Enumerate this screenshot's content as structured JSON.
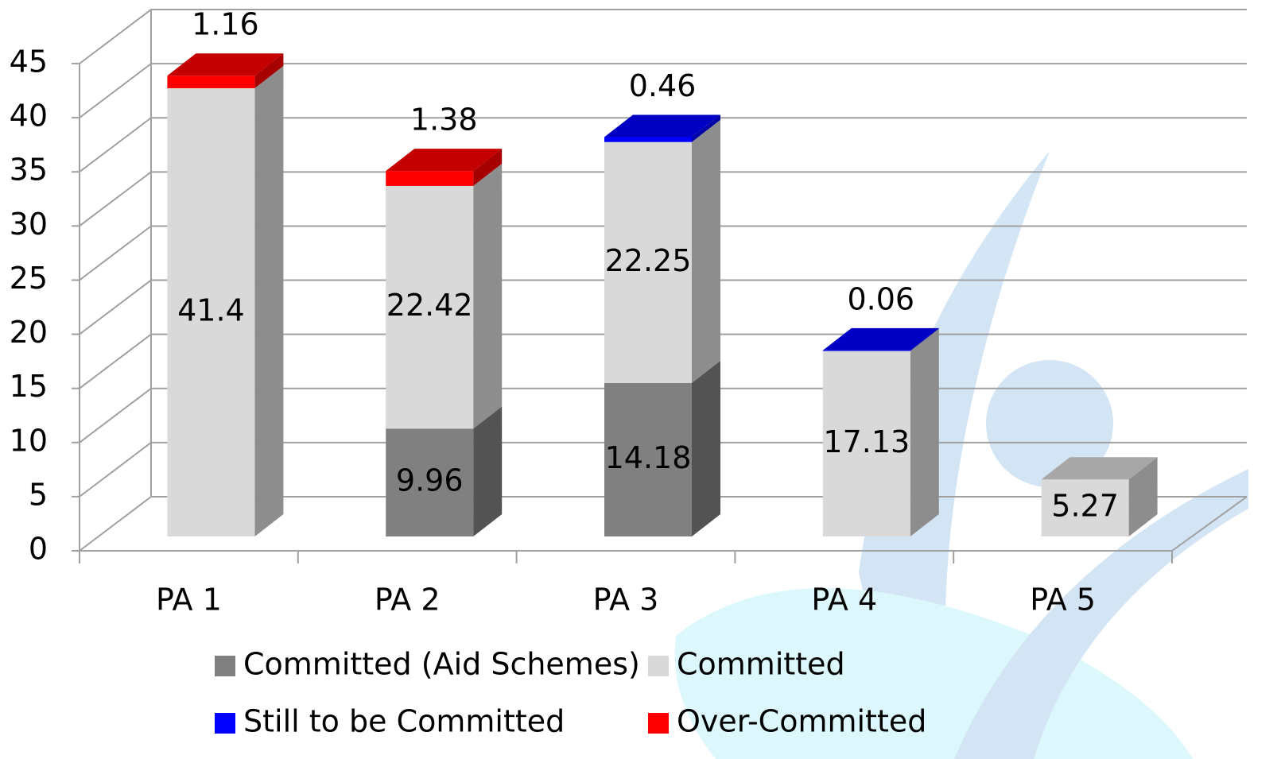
{
  "chart_data": {
    "type": "bar3d_stacked",
    "categories": [
      "PA 1",
      "PA 2",
      "PA 3",
      "PA 4",
      "PA 5"
    ],
    "series": [
      {
        "name": "Committed (Aid Schemes)",
        "color": "#808080",
        "values": [
          null,
          9.96,
          14.18,
          null,
          null
        ],
        "label_position": "inside"
      },
      {
        "name": "Committed",
        "color": "#d9d9d9",
        "values": [
          41.4,
          22.42,
          22.25,
          17.13,
          5.27
        ],
        "label_position": "inside"
      },
      {
        "name": "Still to be Committed",
        "color": "#0000ff",
        "values": [
          null,
          null,
          0.46,
          0.06,
          null
        ],
        "label_position": "above"
      },
      {
        "name": "Over-Committed",
        "color": "#ff0000",
        "values": [
          1.16,
          1.38,
          null,
          null,
          null
        ],
        "label_position": "above"
      }
    ],
    "ylim": [
      0,
      45
    ],
    "yticks": [
      0,
      5,
      10,
      15,
      20,
      25,
      30,
      35,
      40,
      45
    ],
    "grid": true
  }
}
